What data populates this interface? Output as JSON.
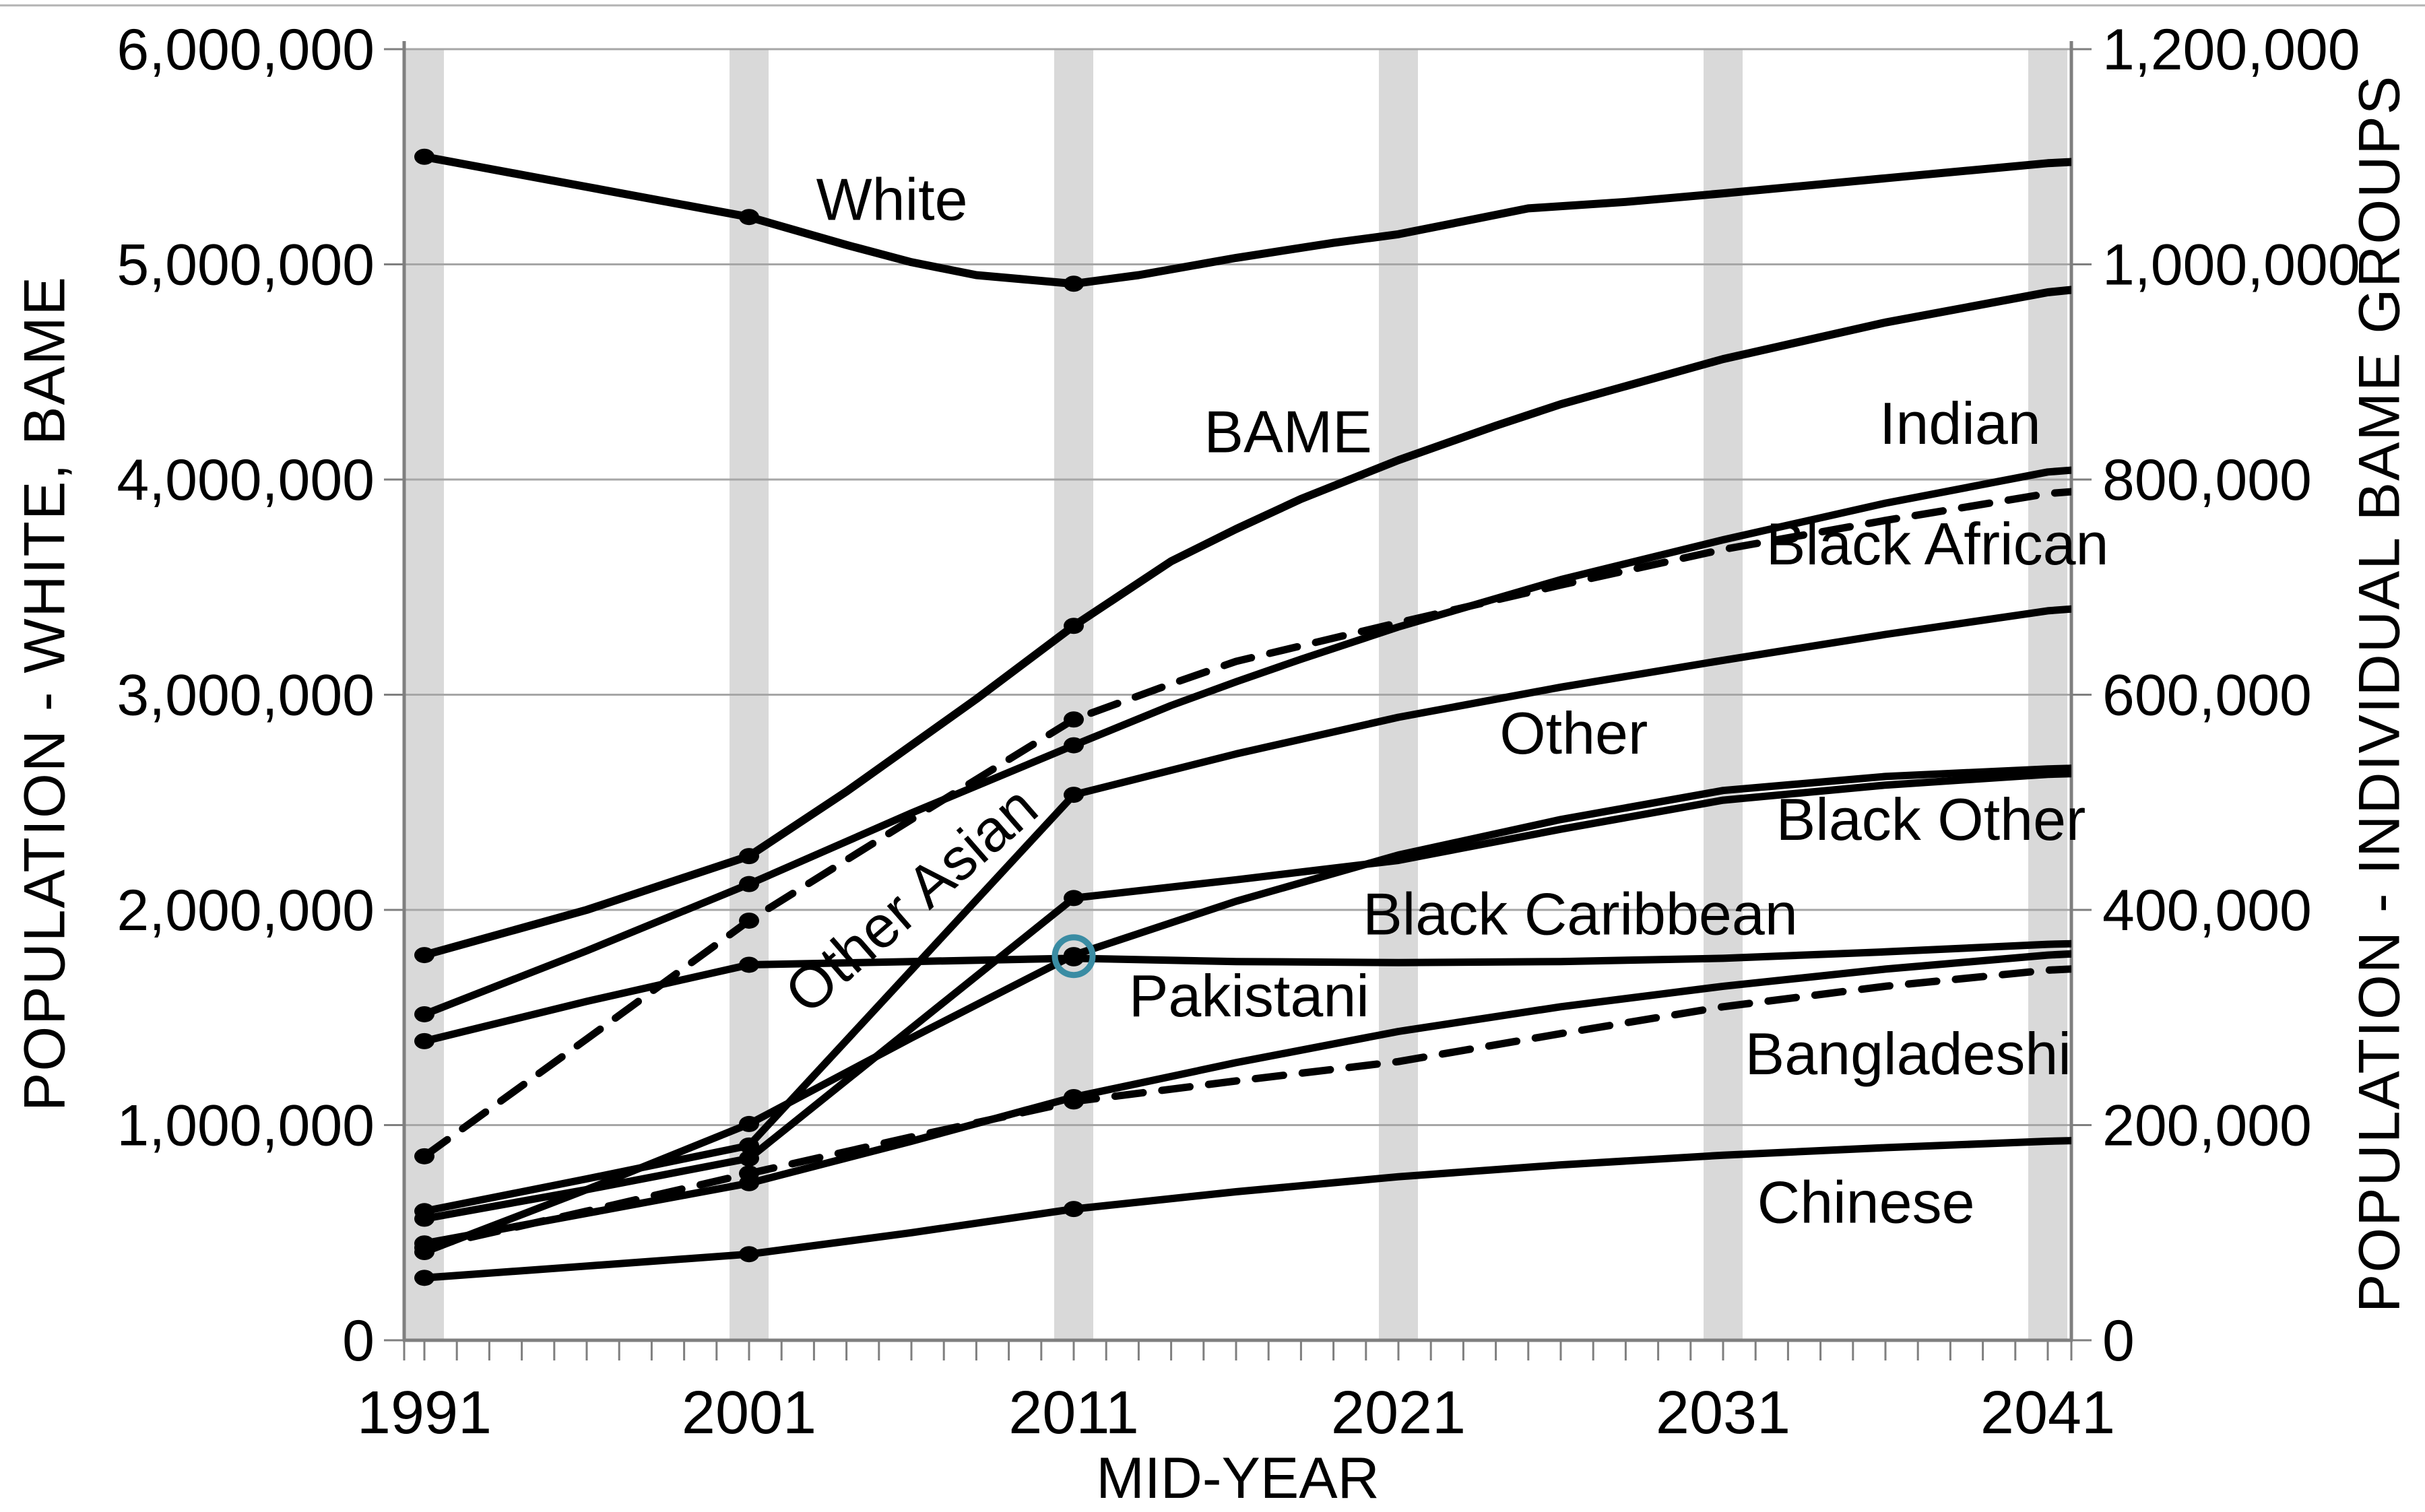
{
  "chart_data": {
    "type": "line",
    "x_axis": {
      "label": "MID-YEAR",
      "tick_years": [
        1991,
        2001,
        2011,
        2021,
        2031,
        2041
      ],
      "tick_labels": [
        "1991",
        "2001",
        "2011",
        "2021",
        "2031",
        "2041"
      ],
      "minor_tick_step_years": 1,
      "range_years": [
        1990.38,
        2041.73
      ]
    },
    "left_axis": {
      "title": "POPULATION - WHITE, BAME",
      "range": [
        0,
        6000000
      ],
      "ticks": [
        {
          "value": 0,
          "label": "0"
        },
        {
          "value": 1000000,
          "label": "1,000,000"
        },
        {
          "value": 2000000,
          "label": "2,000,000"
        },
        {
          "value": 3000000,
          "label": "3,000,000"
        },
        {
          "value": 4000000,
          "label": "4,000,000"
        },
        {
          "value": 5000000,
          "label": "5,000,000"
        },
        {
          "value": 6000000,
          "label": "6,000,000"
        }
      ]
    },
    "right_axis": {
      "title": "POPULATION - INDIVIDUAL BAME GROUPS",
      "range": [
        0,
        1200000
      ],
      "ticks": [
        {
          "value": 0,
          "label": "0"
        },
        {
          "value": 200000,
          "label": "200,000"
        },
        {
          "value": 400000,
          "label": "400,000"
        },
        {
          "value": 600000,
          "label": "600,000"
        },
        {
          "value": 800000,
          "label": "800,000"
        },
        {
          "value": 1000000,
          "label": "1,000,000"
        },
        {
          "value": 1200000,
          "label": "1,200,000"
        }
      ]
    },
    "census_year_bands": [
      1991,
      2001,
      2011,
      2021,
      2031,
      2041
    ],
    "colors": {
      "line": "#000000",
      "band": "#d9d9d9",
      "gridline": "#a6a6a6",
      "axis": "#7f7f7f",
      "highlight_ring": "#3a8ca3",
      "background": "#ffffff"
    },
    "annotation": {
      "name": "highlight-ring",
      "year": 2011,
      "value_right_axis": 357000,
      "note_visual": "teal ring around 2011 marker where Black Other meets Black Caribbean"
    },
    "series": [
      {
        "name": "White",
        "axis": "left",
        "line_style": "solid",
        "width": 12,
        "marker_years": [
          1991,
          2001,
          2011
        ],
        "label": {
          "text": "White",
          "year": 2005.4,
          "value_left_axis": 5300000,
          "rotate": 0
        },
        "points": [
          [
            1991,
            5500000
          ],
          [
            1996,
            5360000
          ],
          [
            2001,
            5220000
          ],
          [
            2004,
            5090000
          ],
          [
            2006,
            5010000
          ],
          [
            2008,
            4950000
          ],
          [
            2011,
            4910000
          ],
          [
            2013,
            4950000
          ],
          [
            2016,
            5030000
          ],
          [
            2019,
            5100000
          ],
          [
            2021,
            5140000
          ],
          [
            2023,
            5200000
          ],
          [
            2025,
            5260000
          ],
          [
            2028,
            5290000
          ],
          [
            2031,
            5330000
          ],
          [
            2036,
            5400000
          ],
          [
            2041,
            5470000
          ],
          [
            2042.3,
            5480000
          ]
        ]
      },
      {
        "name": "BAME",
        "axis": "left",
        "line_style": "solid",
        "width": 12,
        "marker_years": [
          1991,
          2001,
          2011
        ],
        "label": {
          "text": "BAME",
          "year": 2017.6,
          "value_left_axis": 4220000,
          "rotate": 0
        },
        "points": [
          [
            1991,
            1790000
          ],
          [
            1996,
            2000000
          ],
          [
            2001,
            2250000
          ],
          [
            2004,
            2550000
          ],
          [
            2008,
            2980000
          ],
          [
            2011,
            3320000
          ],
          [
            2014,
            3620000
          ],
          [
            2016,
            3770000
          ],
          [
            2018,
            3910000
          ],
          [
            2021,
            4090000
          ],
          [
            2024,
            4250000
          ],
          [
            2026,
            4350000
          ],
          [
            2031,
            4560000
          ],
          [
            2036,
            4730000
          ],
          [
            2041,
            4870000
          ],
          [
            2042.3,
            4890000
          ]
        ]
      },
      {
        "name": "Indian",
        "axis": "right",
        "line_style": "solid",
        "width": 11,
        "marker_years": [
          1991,
          2001,
          2011
        ],
        "label": {
          "text": "Indian",
          "year": 2038.3,
          "value_left_axis": 4260000,
          "rotate": 0
        },
        "points": [
          [
            1991,
            303000
          ],
          [
            1996,
            362000
          ],
          [
            2001,
            424000
          ],
          [
            2006,
            490000
          ],
          [
            2011,
            553000
          ],
          [
            2014,
            590000
          ],
          [
            2016,
            612000
          ],
          [
            2018,
            633000
          ],
          [
            2021,
            663000
          ],
          [
            2026,
            707000
          ],
          [
            2031,
            744000
          ],
          [
            2036,
            778000
          ],
          [
            2041,
            807000
          ],
          [
            2042.3,
            810000
          ]
        ]
      },
      {
        "name": "Black African",
        "axis": "right",
        "line_style": "dashed",
        "width": 11,
        "marker_years": [
          1991,
          2001,
          2011
        ],
        "label": {
          "text": "Black African",
          "year": 2037.6,
          "value_left_axis": 3700000,
          "rotate": 0
        },
        "points": [
          [
            1991,
            171000
          ],
          [
            1996,
            280000
          ],
          [
            2001,
            390000
          ],
          [
            2006,
            484000
          ],
          [
            2011,
            577000
          ],
          [
            2014,
            610000
          ],
          [
            2016,
            631000
          ],
          [
            2021,
            667000
          ],
          [
            2026,
            702000
          ],
          [
            2031,
            735000
          ],
          [
            2036,
            762000
          ],
          [
            2041,
            787000
          ],
          [
            2042.3,
            790000
          ]
        ]
      },
      {
        "name": "Other",
        "axis": "right",
        "line_style": "solid",
        "width": 11,
        "marker_years": [
          1991,
          2001,
          2011
        ],
        "label": {
          "text": "Other",
          "year": 2026.4,
          "value_left_axis": 2820000,
          "rotate": 0
        },
        "points": [
          [
            1991,
            120000
          ],
          [
            1996,
            150000
          ],
          [
            2001,
            181000
          ],
          [
            2011,
            507000
          ],
          [
            2016,
            545000
          ],
          [
            2021,
            579000
          ],
          [
            2026,
            607000
          ],
          [
            2031,
            632000
          ],
          [
            2036,
            656000
          ],
          [
            2041,
            678000
          ],
          [
            2042.3,
            681000
          ]
        ]
      },
      {
        "name": "Other Asian",
        "axis": "right",
        "line_style": "solid",
        "width": 11,
        "marker_years": [
          1991,
          2001,
          2011
        ],
        "label": {
          "text": "Other Asian",
          "year": 2006.4,
          "value_left_axis": 2070000,
          "rotate": -41
        },
        "points": [
          [
            1991,
            113000
          ],
          [
            1996,
            140000
          ],
          [
            2001,
            169000
          ],
          [
            2011,
            411000
          ],
          [
            2016,
            428000
          ],
          [
            2021,
            446000
          ],
          [
            2026,
            475000
          ],
          [
            2031,
            502000
          ],
          [
            2036,
            516000
          ],
          [
            2041,
            526000
          ],
          [
            2042.3,
            527000
          ]
        ]
      },
      {
        "name": "Black Other",
        "axis": "right",
        "line_style": "solid",
        "width": 11,
        "marker_years": [
          1991,
          2001,
          2011
        ],
        "label": {
          "text": "Black Other",
          "year": 2037.4,
          "value_left_axis": 2420000,
          "rotate": 0
        },
        "points": [
          [
            1991,
            82000
          ],
          [
            1996,
            140000
          ],
          [
            2001,
            201000
          ],
          [
            2006,
            281000
          ],
          [
            2011,
            358000
          ],
          [
            2016,
            408000
          ],
          [
            2021,
            451000
          ],
          [
            2026,
            484000
          ],
          [
            2031,
            511000
          ],
          [
            2036,
            524000
          ],
          [
            2041,
            531000
          ],
          [
            2042.3,
            532000
          ]
        ]
      },
      {
        "name": "Black Caribbean",
        "axis": "right",
        "line_style": "solid",
        "width": 11,
        "marker_years": [
          1991,
          2001,
          2011
        ],
        "label": {
          "text": "Black Caribbean",
          "year": 2026.6,
          "value_left_axis": 1980000,
          "rotate": 0
        },
        "points": [
          [
            1991,
            278000
          ],
          [
            1996,
            315000
          ],
          [
            2001,
            349000
          ],
          [
            2006,
            352000
          ],
          [
            2011,
            355000
          ],
          [
            2016,
            352000
          ],
          [
            2021,
            351000
          ],
          [
            2026,
            352000
          ],
          [
            2031,
            355000
          ],
          [
            2036,
            361000
          ],
          [
            2041,
            368000
          ],
          [
            2042.3,
            369000
          ]
        ]
      },
      {
        "name": "Pakistani",
        "axis": "right",
        "line_style": "solid",
        "width": 11,
        "marker_years": [
          1991,
          2001,
          2011
        ],
        "label": {
          "text": "Pakistani",
          "year": 2016.4,
          "value_left_axis": 1600000,
          "rotate": 0
        },
        "points": [
          [
            1991,
            90000
          ],
          [
            1996,
            118000
          ],
          [
            2001,
            146000
          ],
          [
            2006,
            185000
          ],
          [
            2011,
            226000
          ],
          [
            2016,
            258000
          ],
          [
            2021,
            287000
          ],
          [
            2026,
            310000
          ],
          [
            2031,
            329000
          ],
          [
            2036,
            345000
          ],
          [
            2041,
            358000
          ],
          [
            2042.3,
            360000
          ]
        ]
      },
      {
        "name": "Bangladeshi",
        "axis": "right",
        "line_style": "dashed",
        "width": 11,
        "marker_years": [
          1991,
          2001,
          2011
        ],
        "label": {
          "text": "Bangladeshi",
          "year": 2036.7,
          "value_left_axis": 1330000,
          "rotate": 0
        },
        "points": [
          [
            1991,
            86000
          ],
          [
            1996,
            120000
          ],
          [
            2001,
            155000
          ],
          [
            2006,
            189000
          ],
          [
            2011,
            222000
          ],
          [
            2016,
            241000
          ],
          [
            2021,
            259000
          ],
          [
            2026,
            285000
          ],
          [
            2031,
            310000
          ],
          [
            2036,
            329000
          ],
          [
            2041,
            344000
          ],
          [
            2042.3,
            346000
          ]
        ]
      },
      {
        "name": "Chinese",
        "axis": "right",
        "line_style": "solid",
        "width": 11,
        "marker_years": [
          1991,
          2001,
          2011
        ],
        "label": {
          "text": "Chinese",
          "year": 2035.4,
          "value_left_axis": 640000,
          "rotate": 0
        },
        "points": [
          [
            1991,
            58000
          ],
          [
            1996,
            69000
          ],
          [
            2001,
            80000
          ],
          [
            2006,
            100000
          ],
          [
            2011,
            122000
          ],
          [
            2016,
            138000
          ],
          [
            2021,
            152000
          ],
          [
            2026,
            163000
          ],
          [
            2031,
            172000
          ],
          [
            2036,
            179000
          ],
          [
            2041,
            185000
          ],
          [
            2042.3,
            186000
          ]
        ]
      }
    ]
  }
}
